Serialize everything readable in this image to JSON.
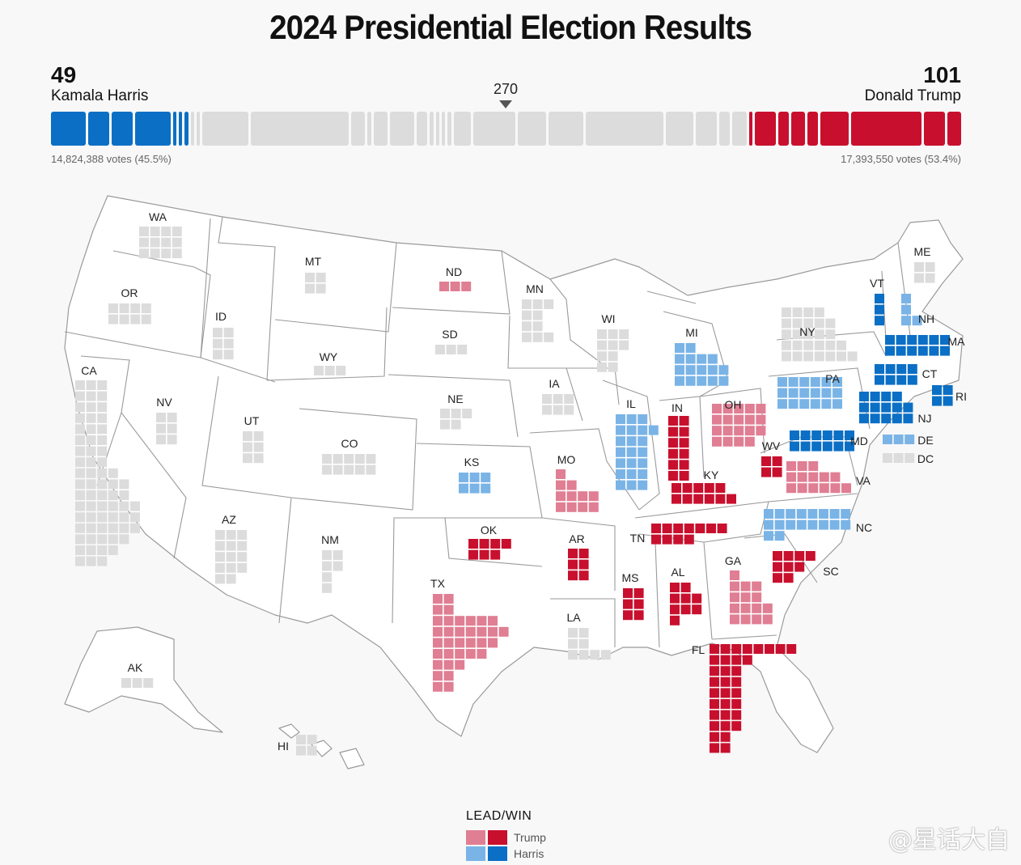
{
  "title": "2024 Presidential Election Results",
  "harris": {
    "electoral": "49",
    "name": "Kamala Harris",
    "votes": "14,824,388 votes (45.5%)"
  },
  "trump": {
    "electoral": "101",
    "name": "Donald Trump",
    "votes": "17,393,550 votes (53.4%)"
  },
  "threshold": "270",
  "colors": {
    "trump_win": "#c8102e",
    "trump_lead": "#e07e93",
    "harris_win": "#0b6fc5",
    "harris_lead": "#7ab4e6",
    "none": "#dcdcdc"
  },
  "bar_segments": [
    {
      "ev": 10,
      "status": "harris_win"
    },
    {
      "ev": 6,
      "status": "harris_win"
    },
    {
      "ev": 6,
      "status": "harris_win"
    },
    {
      "ev": 10,
      "status": "harris_win"
    },
    {
      "ev": 1,
      "status": "harris_win"
    },
    {
      "ev": 1,
      "status": "harris_win"
    },
    {
      "ev": 1,
      "status": "harris_win"
    },
    {
      "ev": 1,
      "status": "none"
    },
    {
      "ev": 1,
      "status": "none"
    },
    {
      "ev": 13,
      "status": "none"
    },
    {
      "ev": 28,
      "status": "none"
    },
    {
      "ev": 4,
      "status": "none"
    },
    {
      "ev": 1,
      "status": "none"
    },
    {
      "ev": 4,
      "status": "none"
    },
    {
      "ev": 7,
      "status": "none"
    },
    {
      "ev": 3,
      "status": "none"
    },
    {
      "ev": 1,
      "status": "none"
    },
    {
      "ev": 1,
      "status": "none"
    },
    {
      "ev": 1,
      "status": "none"
    },
    {
      "ev": 1,
      "status": "none"
    },
    {
      "ev": 5,
      "status": "none"
    },
    {
      "ev": 12,
      "status": "none"
    },
    {
      "ev": 8,
      "status": "none"
    },
    {
      "ev": 10,
      "status": "none"
    },
    {
      "ev": 22,
      "status": "none"
    },
    {
      "ev": 8,
      "status": "none"
    },
    {
      "ev": 6,
      "status": "none"
    },
    {
      "ev": 3,
      "status": "none"
    },
    {
      "ev": 4,
      "status": "none"
    },
    {
      "ev": 1,
      "status": "trump_win"
    },
    {
      "ev": 6,
      "status": "trump_win"
    },
    {
      "ev": 3,
      "status": "trump_win"
    },
    {
      "ev": 4,
      "status": "trump_win"
    },
    {
      "ev": 3,
      "status": "trump_win"
    },
    {
      "ev": 8,
      "status": "trump_win"
    },
    {
      "ev": 20,
      "status": "trump_win"
    },
    {
      "ev": 6,
      "status": "trump_win"
    },
    {
      "ev": 4,
      "status": "trump_win"
    }
  ],
  "states": [
    {
      "abbr": "WA",
      "status": "none"
    },
    {
      "abbr": "OR",
      "status": "none"
    },
    {
      "abbr": "CA",
      "status": "none"
    },
    {
      "abbr": "ID",
      "status": "none"
    },
    {
      "abbr": "NV",
      "status": "none"
    },
    {
      "abbr": "MT",
      "status": "none"
    },
    {
      "abbr": "WY",
      "status": "none"
    },
    {
      "abbr": "UT",
      "status": "none"
    },
    {
      "abbr": "AZ",
      "status": "none"
    },
    {
      "abbr": "CO",
      "status": "none"
    },
    {
      "abbr": "NM",
      "status": "none"
    },
    {
      "abbr": "ND",
      "status": "trump_lead"
    },
    {
      "abbr": "SD",
      "status": "none"
    },
    {
      "abbr": "NE",
      "status": "none"
    },
    {
      "abbr": "KS",
      "status": "harris_lead"
    },
    {
      "abbr": "OK",
      "status": "trump_win"
    },
    {
      "abbr": "TX",
      "status": "trump_lead"
    },
    {
      "abbr": "MN",
      "status": "none"
    },
    {
      "abbr": "IA",
      "status": "none"
    },
    {
      "abbr": "MO",
      "status": "trump_lead"
    },
    {
      "abbr": "AR",
      "status": "trump_win"
    },
    {
      "abbr": "LA",
      "status": "none"
    },
    {
      "abbr": "WI",
      "status": "none"
    },
    {
      "abbr": "IL",
      "status": "harris_lead"
    },
    {
      "abbr": "MI",
      "status": "harris_lead"
    },
    {
      "abbr": "IN",
      "status": "trump_win"
    },
    {
      "abbr": "OH",
      "status": "trump_lead"
    },
    {
      "abbr": "KY",
      "status": "trump_win"
    },
    {
      "abbr": "TN",
      "status": "trump_win"
    },
    {
      "abbr": "MS",
      "status": "trump_win"
    },
    {
      "abbr": "AL",
      "status": "trump_win"
    },
    {
      "abbr": "GA",
      "status": "trump_lead"
    },
    {
      "abbr": "FL",
      "status": "trump_win"
    },
    {
      "abbr": "SC",
      "status": "trump_win"
    },
    {
      "abbr": "NC",
      "status": "harris_lead"
    },
    {
      "abbr": "VA",
      "status": "trump_lead"
    },
    {
      "abbr": "WV",
      "status": "trump_win"
    },
    {
      "abbr": "PA",
      "status": "harris_lead"
    },
    {
      "abbr": "NY",
      "status": "none"
    },
    {
      "abbr": "NJ",
      "status": "harris_win"
    },
    {
      "abbr": "DE",
      "status": "harris_lead"
    },
    {
      "abbr": "MD",
      "status": "harris_win"
    },
    {
      "abbr": "DC",
      "status": "none"
    },
    {
      "abbr": "CT",
      "status": "harris_win"
    },
    {
      "abbr": "RI",
      "status": "harris_win"
    },
    {
      "abbr": "MA",
      "status": "harris_win"
    },
    {
      "abbr": "VT",
      "status": "harris_win"
    },
    {
      "abbr": "NH",
      "status": "harris_lead"
    },
    {
      "abbr": "ME",
      "status": "none"
    },
    {
      "abbr": "AK",
      "status": "none"
    },
    {
      "abbr": "HI",
      "status": "none"
    }
  ],
  "legend": {
    "title": "LEAD/WIN",
    "trump": "Trump",
    "harris": "Harris"
  },
  "watermark": "@星话大自"
}
